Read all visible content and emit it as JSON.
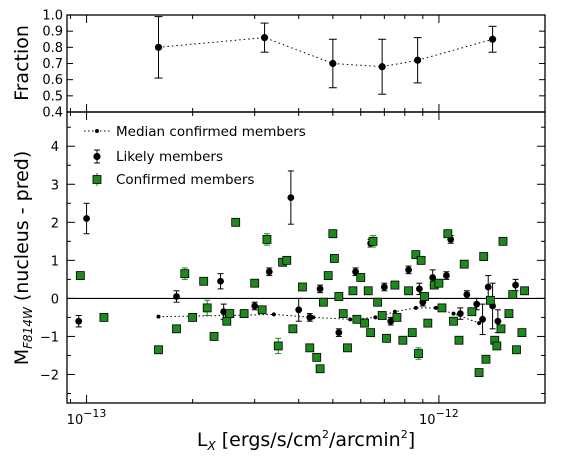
{
  "chart_data": [
    {
      "type": "line",
      "panel": "top",
      "ylabel": "Fraction",
      "xscale": "log",
      "xlim": [
        8.8e-14,
        2e-12
      ],
      "ylim": [
        0.4,
        1.0
      ],
      "yticks": [
        "0.4",
        "0.5",
        "0.6",
        "0.7",
        "0.8",
        "0.9",
        "1.0"
      ],
      "series": [
        {
          "x": [
            1.6e-13,
            3.2e-13,
            5e-13,
            6.9e-13,
            8.7e-13,
            1.42e-12
          ],
          "y": [
            0.8,
            0.86,
            0.7,
            0.68,
            0.72,
            0.85
          ],
          "yerr": [
            0.19,
            0.09,
            0.15,
            0.17,
            0.14,
            0.08
          ]
        }
      ]
    },
    {
      "type": "scatter",
      "panel": "bottom",
      "xlabel_main": "L",
      "xlabel_sub": "X",
      "xlabel_rest": " [ergs/s/cm",
      "xlabel_sup1": "2",
      "xlabel_rest2": "/arcmin",
      "xlabel_sup2": "2",
      "xlabel_close": "]",
      "ylabel_main": "M",
      "ylabel_sub": "F814W",
      "ylabel_rest": " (nucleus - pred)",
      "xscale": "log",
      "xlim": [
        8.8e-14,
        2e-12
      ],
      "ylim": [
        -2.75,
        4.9
      ],
      "yticks": [
        "−2",
        "−1",
        "0",
        "1",
        "2",
        "3",
        "4"
      ],
      "xtick_labels": [
        {
          "base": "10",
          "exp": "−13",
          "value": 1e-13
        },
        {
          "base": "10",
          "exp": "−12",
          "value": 1e-12
        }
      ],
      "legend": [
        {
          "label": "Median confirmed members"
        },
        {
          "label": "Likely members"
        },
        {
          "label": "Confirmed members"
        }
      ],
      "colors": {
        "confirmed": "#1e8a1e",
        "likely": "#000000",
        "median": "#000000"
      },
      "series": [
        {
          "name": "Median confirmed members",
          "x": [
            1.6e-13,
            2.5e-13,
            3.4e-13,
            4.4e-13,
            5.6e-13,
            6.6e-13,
            7.5e-13,
            8.6e-13,
            9.8e-13,
            1.1e-12,
            1.3e-12
          ],
          "y": [
            -0.48,
            -0.45,
            -0.42,
            -0.5,
            -0.55,
            -0.5,
            -0.35,
            -0.25,
            -0.25,
            -0.4,
            -0.65
          ]
        },
        {
          "name": "Likely members",
          "points": [
            {
              "x": 9.5e-14,
              "y": -0.6,
              "err": 0.15
            },
            {
              "x": 1e-13,
              "y": 2.1,
              "err": 0.4
            },
            {
              "x": 1.8e-13,
              "y": 0.05,
              "err": 0.15
            },
            {
              "x": 2.4e-13,
              "y": 0.45,
              "err": 0.2
            },
            {
              "x": 2.45e-13,
              "y": -0.35,
              "err": 0.2
            },
            {
              "x": 3e-13,
              "y": -0.2,
              "err": 0.1
            },
            {
              "x": 3.3e-13,
              "y": 0.7,
              "err": 0.1
            },
            {
              "x": 3.8e-13,
              "y": 2.65,
              "err": 0.7
            },
            {
              "x": 4e-13,
              "y": -0.3,
              "err": 0.3
            },
            {
              "x": 4.3e-13,
              "y": -0.5,
              "err": 0.1
            },
            {
              "x": 4.6e-13,
              "y": 0.25,
              "err": 0.1
            },
            {
              "x": 5.2e-13,
              "y": -0.9,
              "err": 0.1
            },
            {
              "x": 5.8e-13,
              "y": 0.7,
              "err": 0.1
            },
            {
              "x": 6.4e-13,
              "y": 1.45,
              "err": 0.1
            },
            {
              "x": 7e-13,
              "y": 0.3,
              "err": 0.1
            },
            {
              "x": 7.3e-13,
              "y": -0.6,
              "err": 0.1
            },
            {
              "x": 8.2e-13,
              "y": 0.75,
              "err": 0.1
            },
            {
              "x": 8.8e-13,
              "y": 0.25,
              "err": 0.15
            },
            {
              "x": 9e-13,
              "y": -0.1,
              "err": 0.1
            },
            {
              "x": 9.6e-13,
              "y": 0.55,
              "err": 0.2
            },
            {
              "x": 1.05e-12,
              "y": 0.6,
              "err": 0.1
            },
            {
              "x": 1.08e-12,
              "y": 1.55,
              "err": 0.1
            },
            {
              "x": 1.15e-12,
              "y": -0.4,
              "err": 0.15
            },
            {
              "x": 1.2e-12,
              "y": 0.1,
              "err": 0.1
            },
            {
              "x": 1.28e-12,
              "y": -0.15,
              "err": 0.15
            },
            {
              "x": 1.33e-12,
              "y": -0.55,
              "err": 0.4
            },
            {
              "x": 1.38e-12,
              "y": 0.3,
              "err": 0.3
            },
            {
              "x": 1.42e-12,
              "y": -0.2,
              "err": 0.6
            },
            {
              "x": 1.47e-12,
              "y": -0.6,
              "err": 0.3
            },
            {
              "x": 1.65e-12,
              "y": 0.35,
              "err": 0.15
            }
          ]
        },
        {
          "name": "Confirmed members",
          "points": [
            {
              "x": 9.6e-14,
              "y": 0.6,
              "err": 0.05
            },
            {
              "x": 1.12e-13,
              "y": -0.5,
              "err": 0.05
            },
            {
              "x": 1.6e-13,
              "y": -1.35,
              "err": 0.05
            },
            {
              "x": 1.8e-13,
              "y": -0.8,
              "err": 0.05
            },
            {
              "x": 1.9e-13,
              "y": 0.65,
              "err": 0.15
            },
            {
              "x": 2e-13,
              "y": -0.5,
              "err": 0.05
            },
            {
              "x": 2.15e-13,
              "y": 0.45,
              "err": 0.05
            },
            {
              "x": 2.2e-13,
              "y": -0.25,
              "err": 0.2
            },
            {
              "x": 2.3e-13,
              "y": -1.0,
              "err": 0.05
            },
            {
              "x": 2.5e-13,
              "y": -0.6,
              "err": 0.05
            },
            {
              "x": 2.55e-13,
              "y": -0.4,
              "err": 0.1
            },
            {
              "x": 2.65e-13,
              "y": 2.0,
              "err": 0.05
            },
            {
              "x": 2.8e-13,
              "y": -0.4,
              "err": 0.1
            },
            {
              "x": 3e-13,
              "y": 0.4,
              "err": 0.05
            },
            {
              "x": 3.15e-13,
              "y": -0.3,
              "err": 0.05
            },
            {
              "x": 3.25e-13,
              "y": 1.55,
              "err": 0.15
            },
            {
              "x": 3.5e-13,
              "y": -1.25,
              "err": 0.2
            },
            {
              "x": 3.6e-13,
              "y": 0.95,
              "err": 0.1
            },
            {
              "x": 3.7e-13,
              "y": 1.0,
              "err": 0.05
            },
            {
              "x": 3.85e-13,
              "y": -0.8,
              "err": 0.05
            },
            {
              "x": 4.1e-13,
              "y": 0.3,
              "err": 0.05
            },
            {
              "x": 4.3e-13,
              "y": -1.3,
              "err": 0.05
            },
            {
              "x": 4.5e-13,
              "y": -1.55,
              "err": 0.05
            },
            {
              "x": 4.6e-13,
              "y": -1.85,
              "err": 0.05
            },
            {
              "x": 4.7e-13,
              "y": -0.1,
              "err": 0.05
            },
            {
              "x": 4.85e-13,
              "y": 0.6,
              "err": 0.05
            },
            {
              "x": 5e-13,
              "y": 1.7,
              "err": 0.1
            },
            {
              "x": 5.05e-13,
              "y": 1.05,
              "err": 0.05
            },
            {
              "x": 5.2e-13,
              "y": 0.05,
              "err": 0.1
            },
            {
              "x": 5.35e-13,
              "y": -0.4,
              "err": 0.05
            },
            {
              "x": 5.5e-13,
              "y": -1.3,
              "err": 0.05
            },
            {
              "x": 5.7e-13,
              "y": 0.2,
              "err": 0.05
            },
            {
              "x": 5.85e-13,
              "y": -0.55,
              "err": 0.05
            },
            {
              "x": 6e-13,
              "y": 0.55,
              "err": 0.05
            },
            {
              "x": 6.15e-13,
              "y": -0.65,
              "err": 0.1
            },
            {
              "x": 6.3e-13,
              "y": 0.2,
              "err": 0.05
            },
            {
              "x": 6.4e-13,
              "y": -0.9,
              "err": 0.05
            },
            {
              "x": 6.5e-13,
              "y": 1.5,
              "err": 0.15
            },
            {
              "x": 6.7e-13,
              "y": -0.1,
              "err": 0.1
            },
            {
              "x": 6.9e-13,
              "y": -0.45,
              "err": 0.05
            },
            {
              "x": 7.1e-13,
              "y": -1.05,
              "err": 0.05
            },
            {
              "x": 7.5e-13,
              "y": 0.35,
              "err": 0.1
            },
            {
              "x": 7.6e-13,
              "y": -0.5,
              "err": 0.05
            },
            {
              "x": 7.9e-13,
              "y": -1.1,
              "err": 0.05
            },
            {
              "x": 8.2e-13,
              "y": 0.2,
              "err": 0.05
            },
            {
              "x": 8.4e-13,
              "y": -0.9,
              "err": 0.05
            },
            {
              "x": 8.6e-13,
              "y": 1.15,
              "err": 0.05
            },
            {
              "x": 8.75e-13,
              "y": -1.45,
              "err": 0.15
            },
            {
              "x": 8.9e-13,
              "y": 1.0,
              "err": 0.1
            },
            {
              "x": 9.1e-13,
              "y": 0.05,
              "err": 0.1
            },
            {
              "x": 9.3e-13,
              "y": -0.65,
              "err": 0.05
            },
            {
              "x": 9.7e-13,
              "y": 0.35,
              "err": 0.05
            },
            {
              "x": 1e-12,
              "y": 0.4,
              "err": 0.05
            },
            {
              "x": 1.02e-12,
              "y": -0.25,
              "err": 0.05
            },
            {
              "x": 1.06e-12,
              "y": 1.7,
              "err": 0.05
            },
            {
              "x": 1.1e-12,
              "y": -0.6,
              "err": 0.05
            },
            {
              "x": 1.14e-12,
              "y": -1.1,
              "err": 0.05
            },
            {
              "x": 1.18e-12,
              "y": 0.9,
              "err": 0.05
            },
            {
              "x": 1.24e-12,
              "y": -0.35,
              "err": 0.05
            },
            {
              "x": 1.3e-12,
              "y": -1.95,
              "err": 0.05
            },
            {
              "x": 1.34e-12,
              "y": 1.1,
              "err": 0.05
            },
            {
              "x": 1.36e-12,
              "y": -1.6,
              "err": 0.05
            },
            {
              "x": 1.4e-12,
              "y": -0.05,
              "err": 0.05
            },
            {
              "x": 1.44e-12,
              "y": -1.1,
              "err": 0.05
            },
            {
              "x": 1.46e-12,
              "y": -1.25,
              "err": 0.05
            },
            {
              "x": 1.5e-12,
              "y": -0.8,
              "err": 0.05
            },
            {
              "x": 1.52e-12,
              "y": 1.5,
              "err": 0.05
            },
            {
              "x": 1.58e-12,
              "y": -0.4,
              "err": 0.05
            },
            {
              "x": 1.62e-12,
              "y": 0.1,
              "err": 0.05
            },
            {
              "x": 1.66e-12,
              "y": -1.35,
              "err": 0.05
            },
            {
              "x": 1.72e-12,
              "y": -0.9,
              "err": 0.05
            },
            {
              "x": 1.75e-12,
              "y": 0.2,
              "err": 0.05
            }
          ]
        }
      ]
    }
  ]
}
